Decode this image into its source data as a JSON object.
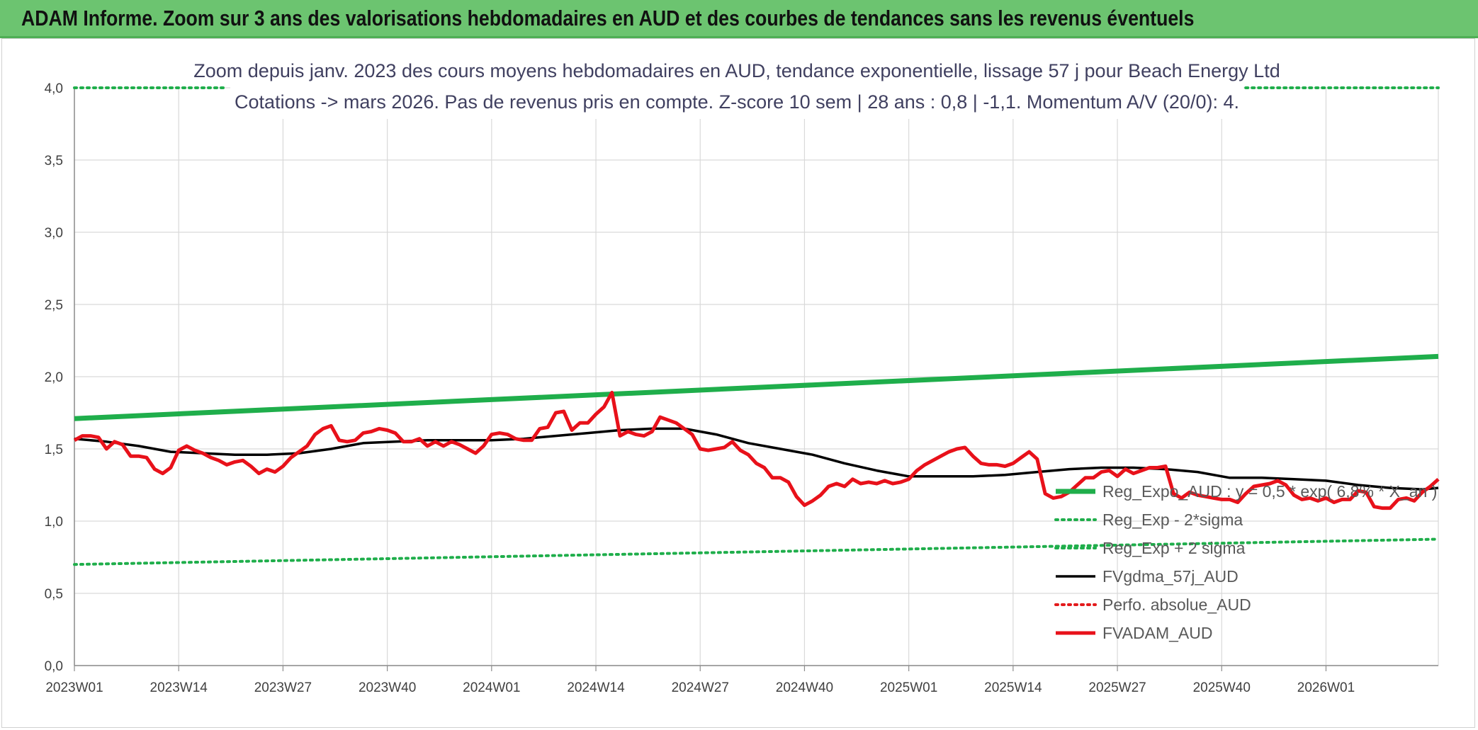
{
  "banner": {
    "title": "ADAM Informe. Zoom sur 3 ans des valorisations hebdomadaires en AUD et des courbes de tendances sans les revenus éventuels"
  },
  "colors": {
    "banner_bg": "#6cc470",
    "trend": "#1fae4b",
    "band": "#1fae4b",
    "moving_average": "#000000",
    "perfo": "#e31a1c",
    "price": "#e8111a"
  },
  "chart_data": {
    "type": "line",
    "subtitle_lines": [
      "Zoom depuis janv. 2023 des cours moyens hebdomadaires en AUD, tendance exponentielle, lissage 57 j pour Beach Energy Ltd",
      "Cotations -> mars 2026. Pas de revenus pris en compte. Z-score 10 sem | 28 ans : 0,8 | -1,1. Momentum A/V (20/0): 4."
    ],
    "x_ticks": [
      "2023W01",
      "2023W14",
      "2023W27",
      "2023W40",
      "2024W01",
      "2024W14",
      "2024W27",
      "2024W40",
      "2025W01",
      "2025W14",
      "2025W27",
      "2025W40",
      "2026W01"
    ],
    "x_tick_index": [
      0,
      13,
      26,
      39,
      52,
      65,
      78,
      91,
      104,
      117,
      130,
      143,
      156
    ],
    "x_range": [
      0,
      170
    ],
    "y_ticks": [
      "0,0",
      "0,5",
      "1,0",
      "1,5",
      "2,0",
      "2,5",
      "3,0",
      "3,5",
      "4,0"
    ],
    "ylim": [
      0,
      4
    ],
    "grid": true,
    "legend_position": "bottom-right",
    "series": [
      {
        "name": "Reg_Expo_AUD : y = 0,5 * exp( 6,8% * X_an )",
        "style": "solid-thick",
        "color": "#1fae4b",
        "points": [
          [
            0,
            1.71
          ],
          [
            170,
            2.14
          ]
        ]
      },
      {
        "name": "Reg_Exp - 2*sigma",
        "style": "dotted",
        "color": "#1fae4b",
        "points": [
          [
            0,
            0.7
          ],
          [
            170,
            0.875
          ]
        ]
      },
      {
        "name": "Reg_Exp + 2 sigma",
        "style": "dotted",
        "color": "#1fae4b",
        "points": [
          [
            0,
            4.0
          ],
          [
            19,
            4.0
          ],
          [
            146,
            4.0
          ],
          [
            170,
            4.0
          ]
        ],
        "segments": [
          [
            0,
            19
          ],
          [
            146,
            170
          ]
        ]
      },
      {
        "name": "FVgdma_57j_AUD",
        "style": "solid",
        "color": "#000000",
        "points": [
          [
            0,
            1.57
          ],
          [
            4,
            1.55
          ],
          [
            8,
            1.52
          ],
          [
            12,
            1.48
          ],
          [
            16,
            1.47
          ],
          [
            20,
            1.46
          ],
          [
            24,
            1.46
          ],
          [
            28,
            1.47
          ],
          [
            32,
            1.5
          ],
          [
            36,
            1.54
          ],
          [
            40,
            1.55
          ],
          [
            44,
            1.56
          ],
          [
            48,
            1.56
          ],
          [
            52,
            1.56
          ],
          [
            56,
            1.57
          ],
          [
            60,
            1.59
          ],
          [
            64,
            1.61
          ],
          [
            68,
            1.63
          ],
          [
            72,
            1.64
          ],
          [
            76,
            1.64
          ],
          [
            80,
            1.6
          ],
          [
            84,
            1.54
          ],
          [
            88,
            1.5
          ],
          [
            92,
            1.46
          ],
          [
            96,
            1.4
          ],
          [
            100,
            1.35
          ],
          [
            104,
            1.31
          ],
          [
            108,
            1.31
          ],
          [
            112,
            1.31
          ],
          [
            116,
            1.32
          ],
          [
            120,
            1.34
          ],
          [
            124,
            1.36
          ],
          [
            128,
            1.37
          ],
          [
            132,
            1.37
          ],
          [
            136,
            1.36
          ],
          [
            140,
            1.34
          ],
          [
            144,
            1.3
          ],
          [
            148,
            1.3
          ],
          [
            152,
            1.29
          ],
          [
            156,
            1.28
          ],
          [
            160,
            1.25
          ],
          [
            164,
            1.23
          ],
          [
            168,
            1.22
          ],
          [
            170,
            1.23
          ]
        ]
      },
      {
        "name": "Perfo. absolue_AUD",
        "style": "dotted",
        "color": "#e31a1c",
        "points": []
      },
      {
        "name": "FVADAM_AUD",
        "style": "solid-thick",
        "color": "#e8111a",
        "points": [
          [
            0,
            1.56
          ],
          [
            1,
            1.59
          ],
          [
            2,
            1.59
          ],
          [
            3,
            1.58
          ],
          [
            4,
            1.5
          ],
          [
            5,
            1.55
          ],
          [
            6,
            1.53
          ],
          [
            7,
            1.45
          ],
          [
            8,
            1.45
          ],
          [
            9,
            1.44
          ],
          [
            10,
            1.36
          ],
          [
            11,
            1.33
          ],
          [
            12,
            1.37
          ],
          [
            13,
            1.49
          ],
          [
            14,
            1.52
          ],
          [
            15,
            1.49
          ],
          [
            16,
            1.47
          ],
          [
            17,
            1.44
          ],
          [
            18,
            1.42
          ],
          [
            19,
            1.39
          ],
          [
            20,
            1.41
          ],
          [
            21,
            1.42
          ],
          [
            22,
            1.38
          ],
          [
            23,
            1.33
          ],
          [
            24,
            1.36
          ],
          [
            25,
            1.34
          ],
          [
            26,
            1.38
          ],
          [
            27,
            1.44
          ],
          [
            28,
            1.48
          ],
          [
            29,
            1.52
          ],
          [
            30,
            1.6
          ],
          [
            31,
            1.64
          ],
          [
            32,
            1.66
          ],
          [
            33,
            1.56
          ],
          [
            34,
            1.55
          ],
          [
            35,
            1.56
          ],
          [
            36,
            1.61
          ],
          [
            37,
            1.62
          ],
          [
            38,
            1.64
          ],
          [
            39,
            1.63
          ],
          [
            40,
            1.61
          ],
          [
            41,
            1.55
          ],
          [
            42,
            1.55
          ],
          [
            43,
            1.57
          ],
          [
            44,
            1.52
          ],
          [
            45,
            1.55
          ],
          [
            46,
            1.52
          ],
          [
            47,
            1.55
          ],
          [
            48,
            1.53
          ],
          [
            49,
            1.5
          ],
          [
            50,
            1.47
          ],
          [
            51,
            1.52
          ],
          [
            52,
            1.6
          ],
          [
            53,
            1.61
          ],
          [
            54,
            1.6
          ],
          [
            55,
            1.57
          ],
          [
            56,
            1.56
          ],
          [
            57,
            1.56
          ],
          [
            58,
            1.64
          ],
          [
            59,
            1.65
          ],
          [
            60,
            1.75
          ],
          [
            61,
            1.76
          ],
          [
            62,
            1.63
          ],
          [
            63,
            1.68
          ],
          [
            64,
            1.68
          ],
          [
            65,
            1.74
          ],
          [
            66,
            1.79
          ],
          [
            67,
            1.89
          ],
          [
            68,
            1.59
          ],
          [
            69,
            1.62
          ],
          [
            70,
            1.6
          ],
          [
            71,
            1.59
          ],
          [
            72,
            1.62
          ],
          [
            73,
            1.72
          ],
          [
            74,
            1.7
          ],
          [
            75,
            1.68
          ],
          [
            76,
            1.64
          ],
          [
            77,
            1.6
          ],
          [
            78,
            1.5
          ],
          [
            79,
            1.49
          ],
          [
            80,
            1.5
          ],
          [
            81,
            1.51
          ],
          [
            82,
            1.55
          ],
          [
            83,
            1.49
          ],
          [
            84,
            1.46
          ],
          [
            85,
            1.4
          ],
          [
            86,
            1.37
          ],
          [
            87,
            1.3
          ],
          [
            88,
            1.3
          ],
          [
            89,
            1.27
          ],
          [
            90,
            1.17
          ],
          [
            91,
            1.11
          ],
          [
            92,
            1.14
          ],
          [
            93,
            1.18
          ],
          [
            94,
            1.24
          ],
          [
            95,
            1.26
          ],
          [
            96,
            1.24
          ],
          [
            97,
            1.29
          ],
          [
            98,
            1.26
          ],
          [
            99,
            1.27
          ],
          [
            100,
            1.26
          ],
          [
            101,
            1.28
          ],
          [
            102,
            1.26
          ],
          [
            103,
            1.27
          ],
          [
            104,
            1.29
          ],
          [
            105,
            1.35
          ],
          [
            106,
            1.39
          ],
          [
            107,
            1.42
          ],
          [
            108,
            1.45
          ],
          [
            109,
            1.48
          ],
          [
            110,
            1.5
          ],
          [
            111,
            1.51
          ],
          [
            112,
            1.45
          ],
          [
            113,
            1.4
          ],
          [
            114,
            1.39
          ],
          [
            115,
            1.39
          ],
          [
            116,
            1.38
          ],
          [
            117,
            1.4
          ],
          [
            118,
            1.44
          ],
          [
            119,
            1.48
          ],
          [
            120,
            1.43
          ],
          [
            121,
            1.19
          ],
          [
            122,
            1.16
          ],
          [
            123,
            1.17
          ],
          [
            124,
            1.2
          ],
          [
            125,
            1.25
          ],
          [
            126,
            1.3
          ],
          [
            127,
            1.3
          ],
          [
            128,
            1.34
          ],
          [
            129,
            1.35
          ],
          [
            130,
            1.31
          ],
          [
            131,
            1.36
          ],
          [
            132,
            1.33
          ],
          [
            133,
            1.35
          ],
          [
            134,
            1.37
          ],
          [
            135,
            1.37
          ],
          [
            136,
            1.38
          ],
          [
            137,
            1.19
          ],
          [
            138,
            1.16
          ],
          [
            139,
            1.2
          ],
          [
            140,
            1.18
          ],
          [
            141,
            1.17
          ],
          [
            142,
            1.16
          ],
          [
            143,
            1.15
          ],
          [
            144,
            1.15
          ],
          [
            145,
            1.13
          ],
          [
            146,
            1.19
          ],
          [
            147,
            1.24
          ],
          [
            148,
            1.25
          ],
          [
            149,
            1.26
          ],
          [
            150,
            1.28
          ],
          [
            151,
            1.25
          ],
          [
            152,
            1.18
          ],
          [
            153,
            1.15
          ],
          [
            154,
            1.16
          ],
          [
            155,
            1.14
          ],
          [
            156,
            1.16
          ],
          [
            157,
            1.13
          ],
          [
            158,
            1.15
          ],
          [
            159,
            1.15
          ],
          [
            160,
            1.21
          ],
          [
            161,
            1.2
          ],
          [
            162,
            1.1
          ],
          [
            163,
            1.09
          ],
          [
            164,
            1.09
          ],
          [
            165,
            1.15
          ],
          [
            166,
            1.16
          ],
          [
            167,
            1.14
          ],
          [
            168,
            1.2
          ],
          [
            169,
            1.24
          ],
          [
            170,
            1.29
          ]
        ]
      }
    ]
  }
}
